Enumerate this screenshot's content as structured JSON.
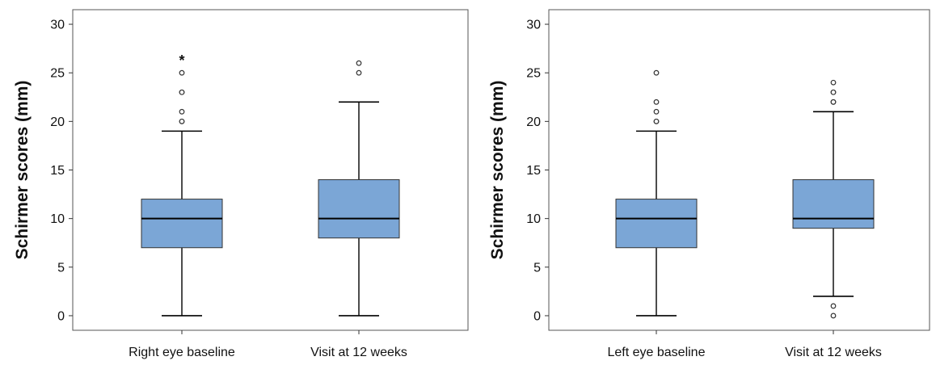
{
  "chart_data": [
    {
      "type": "box",
      "ylabel": "Schirmer scores (mm)",
      "ylim": [
        -1.5,
        31.5
      ],
      "yticks": [
        0,
        5,
        10,
        15,
        20,
        25,
        30
      ],
      "categories": [
        "Right eye baseline",
        "Visit at 12 weeks"
      ],
      "box_color": "#7ba6d6",
      "grid": false,
      "boxes": [
        {
          "min": 0,
          "q1": 7,
          "median": 10,
          "q3": 12,
          "max": 19,
          "outliers": [
            20,
            20,
            21,
            23,
            23,
            25
          ],
          "extremes": [
            26.5
          ]
        },
        {
          "min": 0,
          "q1": 8,
          "median": 10,
          "q3": 14,
          "max": 22,
          "outliers": [
            25,
            26
          ],
          "extremes": []
        }
      ]
    },
    {
      "type": "box",
      "ylabel": "Schirmer scores (mm)",
      "ylim": [
        -1.5,
        31.5
      ],
      "yticks": [
        0,
        5,
        10,
        15,
        20,
        25,
        30
      ],
      "categories": [
        "Left eye baseline",
        "Visit at 12 weeks"
      ],
      "box_color": "#7ba6d6",
      "grid": false,
      "boxes": [
        {
          "min": 0,
          "q1": 7,
          "median": 10,
          "q3": 12,
          "max": 19,
          "outliers": [
            20,
            20,
            21,
            22,
            25
          ],
          "extremes": []
        },
        {
          "min": 2,
          "q1": 9,
          "median": 10,
          "q3": 14,
          "max": 21,
          "outliers": [
            0,
            1,
            22,
            22,
            23,
            23,
            24
          ],
          "extremes": []
        }
      ]
    }
  ]
}
